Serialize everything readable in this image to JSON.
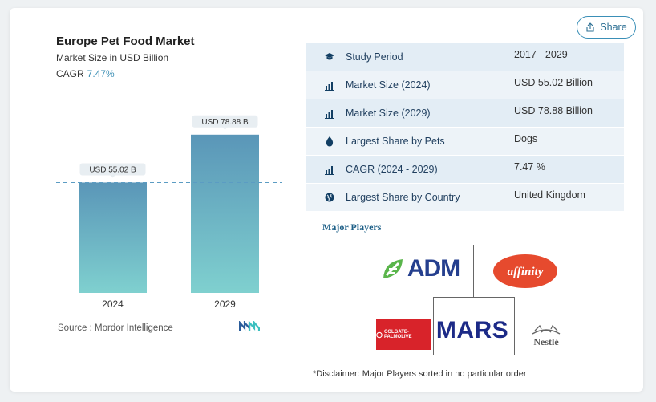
{
  "header": {
    "title": "Europe Pet Food Market",
    "subtitle": "Market Size in USD Billion",
    "cagr_label": "CAGR",
    "cagr_value": "7.47%"
  },
  "share_button": {
    "label": "Share",
    "icon": "share-icon"
  },
  "chart_data": {
    "type": "bar",
    "categories": [
      "2024",
      "2029"
    ],
    "values": [
      55.02,
      78.88
    ],
    "data_labels": [
      "USD 55.02 B",
      "USD 78.88 B"
    ],
    "ylim": [
      0,
      100
    ],
    "reference_line": 55.02,
    "bar_color_top": "#5a96b8",
    "bar_color_bottom": "#7fd0cf",
    "title": "",
    "xlabel": "",
    "ylabel": ""
  },
  "source": "Source :  Mordor Intelligence",
  "table": [
    {
      "icon": "graduation-cap-icon",
      "label": "Study Period",
      "value": "2017 - 2029"
    },
    {
      "icon": "bar-chart-icon",
      "label": "Market Size (2024)",
      "value": "USD 55.02 Billion"
    },
    {
      "icon": "bar-chart-icon",
      "label": "Market Size (2029)",
      "value": "USD 78.88 Billion"
    },
    {
      "icon": "drop-icon",
      "label": "Largest Share by Pets",
      "value": "Dogs"
    },
    {
      "icon": "bar-chart-icon",
      "label": "CAGR (2024 - 2029)",
      "value": "7.47 %"
    },
    {
      "icon": "globe-icon",
      "label": "Largest Share by Country",
      "value": "United Kingdom"
    }
  ],
  "major_players": {
    "heading": "Major Players",
    "logos": [
      "ADM",
      "affinity",
      "COLGATE-PALMOLIVE",
      "MARS",
      "Nestlé"
    ]
  },
  "disclaimer": "*Disclaimer: Major Players sorted in no particular order"
}
